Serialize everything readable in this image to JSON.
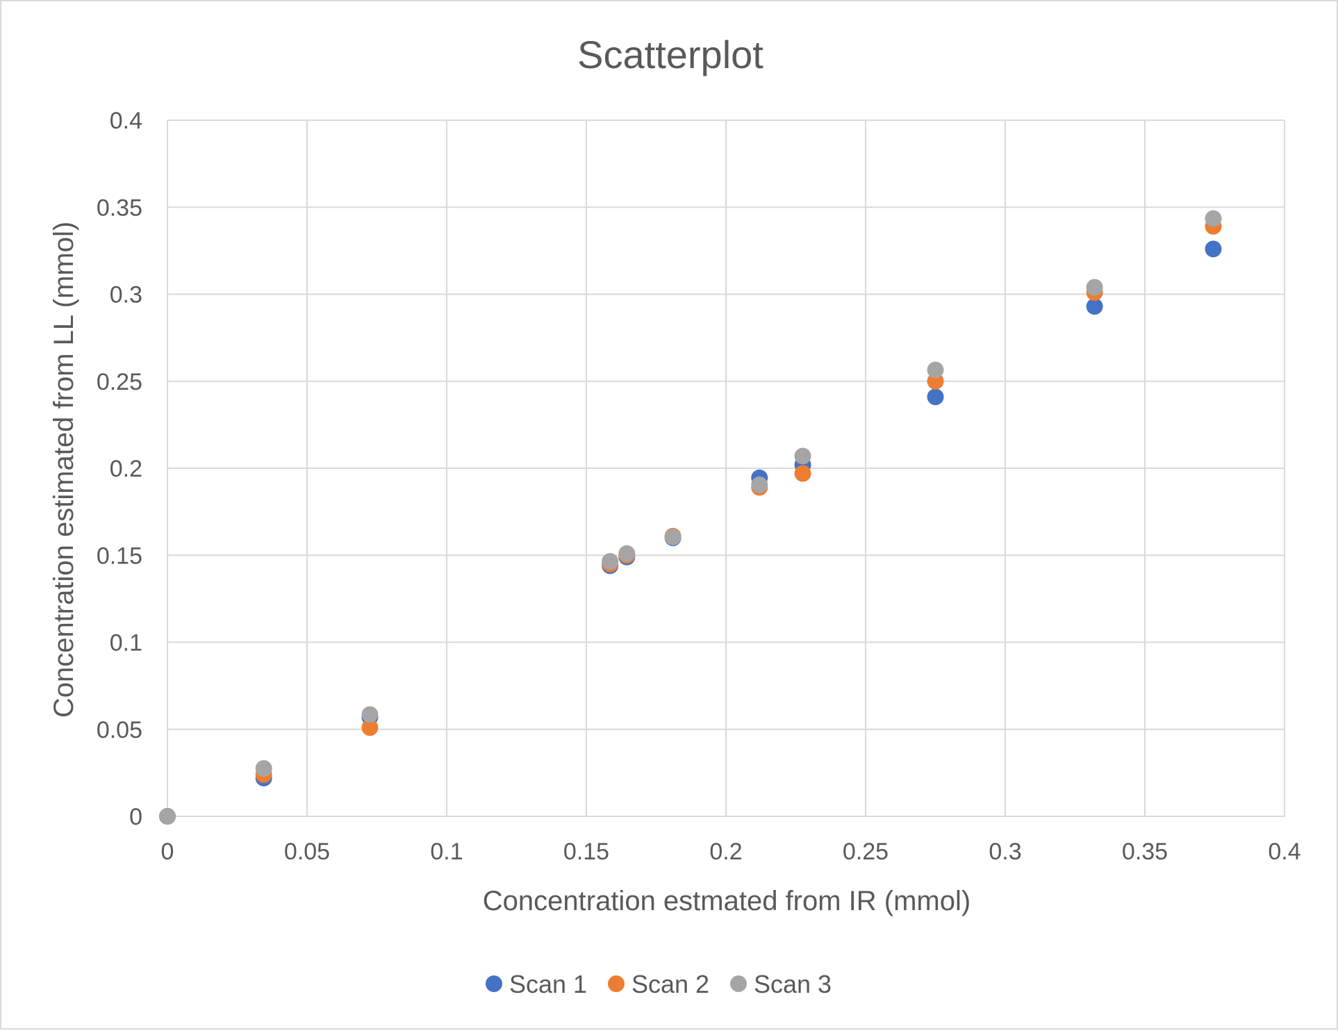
{
  "chart_data": {
    "type": "scatter",
    "title": "Scatterplot",
    "xlabel": "Concentration estmated from IR (mmol)",
    "ylabel": "Concentration estimated from LL (mmol)",
    "xlim": [
      0,
      0.4
    ],
    "ylim": [
      0,
      0.4
    ],
    "xticks": [
      0,
      0.05,
      0.1,
      0.15,
      0.2,
      0.25,
      0.3,
      0.35,
      0.4
    ],
    "yticks": [
      0,
      0.05,
      0.1,
      0.15,
      0.2,
      0.25,
      0.3,
      0.35,
      0.4
    ],
    "xtick_labels": [
      "0",
      "0.05",
      "0.1",
      "0.15",
      "0.2",
      "0.25",
      "0.3",
      "0.35",
      "0.4"
    ],
    "ytick_labels": [
      "0",
      "0.05",
      "0.1",
      "0.15",
      "0.2",
      "0.25",
      "0.3",
      "0.35",
      "0.4"
    ],
    "grid": true,
    "legend_position": "bottom",
    "series": [
      {
        "name": "Scan 1",
        "color": "#4472C4",
        "points": [
          [
            0,
            0
          ],
          [
            0.0345,
            0.022
          ],
          [
            0.0725,
            0.057
          ],
          [
            0.1585,
            0.144
          ],
          [
            0.1645,
            0.149
          ],
          [
            0.181,
            0.16
          ],
          [
            0.212,
            0.1945
          ],
          [
            0.2275,
            0.202
          ],
          [
            0.275,
            0.241
          ],
          [
            0.332,
            0.293
          ],
          [
            0.3745,
            0.326
          ]
        ]
      },
      {
        "name": "Scan 2",
        "color": "#ED7D31",
        "points": [
          [
            0,
            0
          ],
          [
            0.0345,
            0.024
          ],
          [
            0.0725,
            0.051
          ],
          [
            0.1585,
            0.145
          ],
          [
            0.1645,
            0.15
          ],
          [
            0.181,
            0.161
          ],
          [
            0.212,
            0.189
          ],
          [
            0.2275,
            0.197
          ],
          [
            0.275,
            0.25
          ],
          [
            0.332,
            0.301
          ],
          [
            0.3745,
            0.339
          ]
        ]
      },
      {
        "name": "Scan 3",
        "color": "#A5A5A5",
        "points": [
          [
            0,
            0
          ],
          [
            0.0345,
            0.0275
          ],
          [
            0.0725,
            0.0585
          ],
          [
            0.1585,
            0.1465
          ],
          [
            0.1645,
            0.151
          ],
          [
            0.181,
            0.1605
          ],
          [
            0.212,
            0.1905
          ],
          [
            0.2275,
            0.207
          ],
          [
            0.275,
            0.2565
          ],
          [
            0.332,
            0.304
          ],
          [
            0.3745,
            0.3435
          ]
        ]
      }
    ]
  }
}
